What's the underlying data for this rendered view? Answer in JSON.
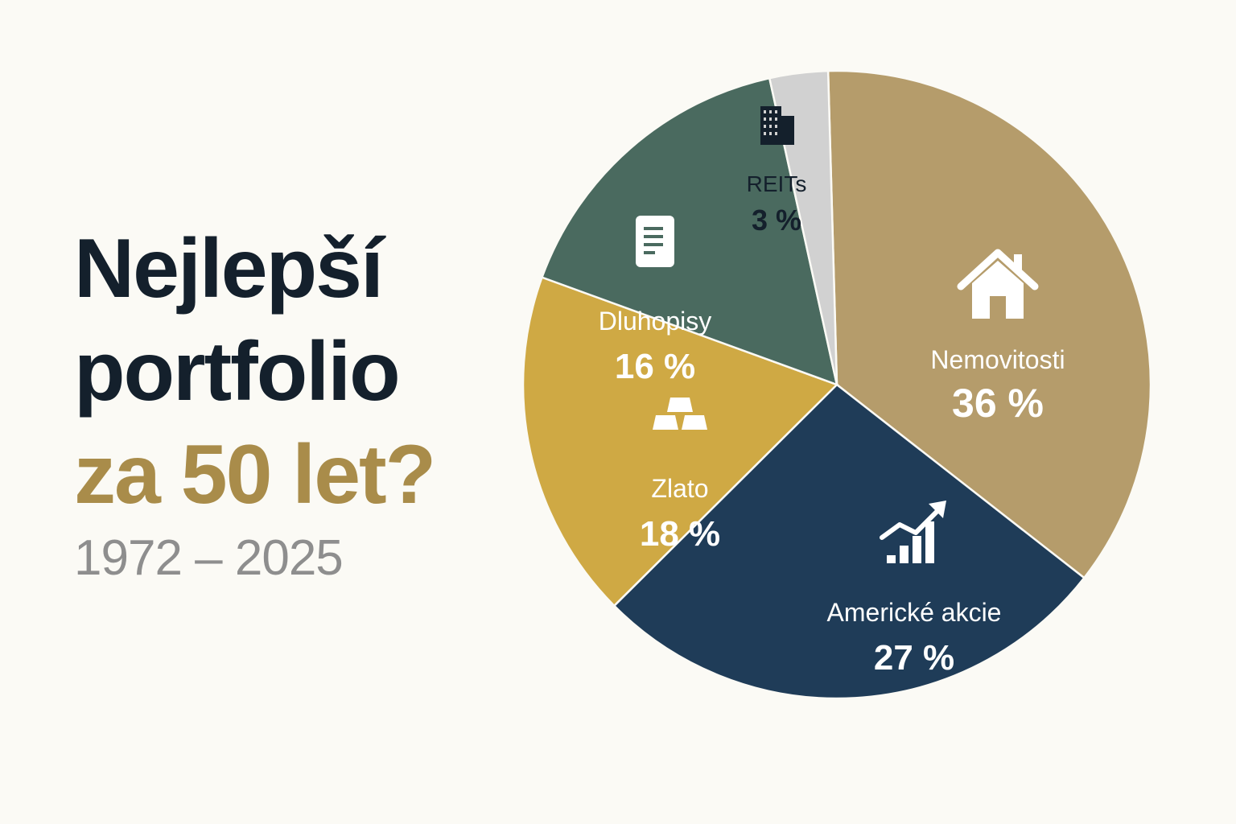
{
  "title": {
    "line1": "Nejlepší",
    "line2": "portfolio",
    "line3": "za 50 let?",
    "years": "1972 – 2025"
  },
  "colors": {
    "title": "#14202c",
    "accent": "#a98c4a",
    "years": "#8e8e8e",
    "background": "#fbfaf5"
  },
  "chart_data": {
    "type": "pie",
    "slices": [
      {
        "label": "Nemovitosti",
        "value": 36,
        "value_label": "36 %",
        "color": "#b59c6b",
        "text_color": "#ffffff",
        "icon": "house-icon"
      },
      {
        "label": "Americké akcie",
        "value": 27,
        "value_label": "27 %",
        "color": "#1f3c58",
        "text_color": "#ffffff",
        "icon": "chart-growth-icon"
      },
      {
        "label": "Zlato",
        "value": 18,
        "value_label": "18 %",
        "color": "#cfa944",
        "text_color": "#ffffff",
        "icon": "gold-bars-icon"
      },
      {
        "label": "Dluhopisy",
        "value": 16,
        "value_label": "16 %",
        "color": "#4a6a5f",
        "text_color": "#ffffff",
        "icon": "document-icon"
      },
      {
        "label": "REITs",
        "value": 3,
        "value_label": "3 %",
        "color": "#d1d1d1",
        "text_color": "#14202c",
        "icon": "building-icon"
      }
    ]
  }
}
